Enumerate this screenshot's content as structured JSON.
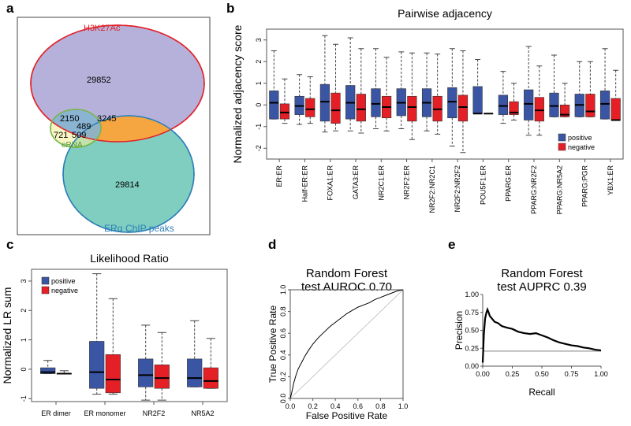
{
  "colors": {
    "positive": "#3a55a4",
    "negative": "#e41f26",
    "venn_h3k": "#a8a3d3",
    "venn_er": "#69c6b5",
    "venn_erna": "#f1ef9c",
    "venn_orange": "#f6a641"
  },
  "panels": {
    "a": "a",
    "b": "b",
    "c": "c",
    "d": "d",
    "e": "e"
  },
  "chart_data": [
    {
      "panel": "a",
      "type": "venn",
      "sets": [
        {
          "name": "H3K27Ac",
          "only": 29852
        },
        {
          "name": "ERα ChIP peaks",
          "only": 29814
        },
        {
          "name": "eRNA",
          "only": 721
        }
      ],
      "overlaps": [
        {
          "sets": [
            "H3K27Ac",
            "eRNA"
          ],
          "value": 2150
        },
        {
          "sets": [
            "H3K27Ac",
            "ERα ChIP peaks"
          ],
          "value": 3245
        },
        {
          "sets": [
            "H3K27Ac",
            "eRNA",
            "ERα ChIP peaks"
          ],
          "value": 489
        },
        {
          "sets": [
            "eRNA",
            "ERα ChIP peaks"
          ],
          "value": 509
        }
      ]
    },
    {
      "panel": "b",
      "type": "boxplot",
      "title": "Pairwise adjacency",
      "ylabel": "Normalized adjacency score",
      "ylim": [
        -2.5,
        3.5
      ],
      "yticks": [
        -2,
        -1,
        0,
        1,
        2,
        3
      ],
      "legend": [
        "positive",
        "negative"
      ],
      "categories": [
        "ER:ER",
        "Half-ER:ER",
        "FOXA1:ER",
        "GATA3:ER",
        "NR2C1:ER",
        "NR2F2:ER",
        "NR2F2:NR2C1",
        "NR2F2:NR2F2",
        "POU5F1:ER",
        "PPARG:ER",
        "PPARG:NR2F2",
        "PPARG:NR5A2",
        "PPARG:PGR",
        "YBX1:ER"
      ],
      "series": [
        {
          "name": "positive",
          "boxes": [
            [
              -0.65,
              -0.65,
              0.1,
              0.65,
              2.5
            ],
            [
              -0.9,
              -0.45,
              -0.05,
              0.4,
              1.4
            ],
            [
              -1.25,
              -0.75,
              0.15,
              0.95,
              3.2
            ],
            [
              -1.2,
              -0.65,
              0.1,
              0.9,
              3.1
            ],
            [
              -1.1,
              -0.55,
              0.05,
              0.75,
              2.6
            ],
            [
              -1.1,
              -0.5,
              0.1,
              0.75,
              2.45
            ],
            [
              -1.2,
              -0.55,
              0.1,
              0.75,
              2.4
            ],
            [
              -1.9,
              -0.6,
              0.15,
              0.8,
              2.6
            ],
            [
              -0.4,
              -0.4,
              -0.4,
              0.85,
              2.1
            ],
            [
              -0.85,
              -0.45,
              -0.05,
              0.45,
              1.55
            ],
            [
              -1.4,
              -0.7,
              0.05,
              0.7,
              2.7
            ],
            [
              -0.55,
              -0.55,
              -0.05,
              0.55,
              2.3
            ],
            [
              -0.55,
              -0.55,
              0.0,
              0.5,
              2.0
            ],
            [
              -0.65,
              -0.65,
              0.05,
              0.65,
              2.6
            ]
          ]
        },
        {
          "name": "negative",
          "boxes": [
            [
              -0.85,
              -0.65,
              -0.35,
              0.05,
              1.2
            ],
            [
              -0.85,
              -0.55,
              -0.2,
              0.3,
              1.3
            ],
            [
              -1.2,
              -0.85,
              -0.25,
              0.55,
              2.8
            ],
            [
              -1.3,
              -0.75,
              -0.2,
              0.5,
              2.6
            ],
            [
              -1.2,
              -0.6,
              -0.1,
              0.4,
              2.2
            ],
            [
              -1.6,
              -0.75,
              -0.1,
              0.4,
              2.4
            ],
            [
              -1.35,
              -0.75,
              -0.2,
              0.4,
              2.35
            ],
            [
              -2.2,
              -0.75,
              -0.1,
              0.45,
              2.5
            ],
            [
              -0.4,
              -0.4,
              -0.4,
              -0.4,
              -0.4
            ],
            [
              -0.7,
              -0.45,
              -0.35,
              0.15,
              1.0
            ],
            [
              -1.4,
              -0.75,
              -0.25,
              0.35,
              1.8
            ],
            [
              -0.55,
              -0.55,
              -0.45,
              0.0,
              1.0
            ],
            [
              -0.55,
              -0.55,
              -0.3,
              0.5,
              2.0
            ],
            [
              -0.7,
              -0.7,
              -0.7,
              0.3,
              1.6
            ]
          ]
        }
      ]
    },
    {
      "panel": "c",
      "type": "boxplot",
      "title": "Likelihood Ratio",
      "ylabel": "Normalized LR sum",
      "ylim": [
        -1.1,
        3.4
      ],
      "yticks": [
        -1,
        0,
        1,
        2,
        3
      ],
      "legend": [
        "positive",
        "negative"
      ],
      "categories": [
        "ER dimer",
        "ER monomer",
        "NR2F2",
        "NR5A2"
      ],
      "series": [
        {
          "name": "positive",
          "boxes": [
            [
              -0.15,
              -0.15,
              -0.1,
              0.05,
              0.3
            ],
            [
              -0.85,
              -0.65,
              -0.1,
              0.95,
              3.25
            ],
            [
              -1.05,
              -0.6,
              -0.2,
              0.35,
              1.5
            ],
            [
              -0.6,
              -0.6,
              -0.3,
              0.35,
              1.65
            ]
          ]
        },
        {
          "name": "negative",
          "boxes": [
            [
              -0.15,
              -0.15,
              -0.15,
              -0.15,
              -0.05
            ],
            [
              -0.85,
              -0.8,
              -0.35,
              0.5,
              2.4
            ],
            [
              -1.05,
              -0.65,
              -0.3,
              0.15,
              1.25
            ],
            [
              -0.65,
              -0.65,
              -0.4,
              0.05,
              1.05
            ]
          ]
        }
      ]
    },
    {
      "panel": "d",
      "type": "line",
      "title": "Random Forest\ntest AUROC 0.70",
      "title_lines": [
        "Random Forest",
        "test AUROC 0.70"
      ],
      "xlabel": "False Positive Rate",
      "ylabel": "True Positive Rate",
      "xlim": [
        0,
        1
      ],
      "ylim": [
        0,
        1
      ],
      "ticks": [
        "0.0",
        "0.2",
        "0.4",
        "0.6",
        "0.8",
        "1.0"
      ],
      "x": [
        0,
        0.01,
        0.02,
        0.03,
        0.05,
        0.07,
        0.1,
        0.13,
        0.16,
        0.2,
        0.25,
        0.3,
        0.35,
        0.4,
        0.45,
        0.5,
        0.55,
        0.6,
        0.65,
        0.7,
        0.75,
        0.8,
        0.85,
        0.9,
        0.95,
        1.0
      ],
      "y": [
        0,
        0.04,
        0.09,
        0.14,
        0.21,
        0.27,
        0.33,
        0.39,
        0.44,
        0.5,
        0.56,
        0.61,
        0.66,
        0.7,
        0.74,
        0.78,
        0.81,
        0.84,
        0.86,
        0.88,
        0.91,
        0.93,
        0.95,
        0.97,
        0.99,
        1.0
      ],
      "diagonal": true
    },
    {
      "panel": "e",
      "type": "line",
      "title": "Random Forest\ntest AUPRC 0.39",
      "title_lines": [
        "Random Forest",
        "test AUPRC 0.39"
      ],
      "xlabel": "Recall",
      "ylabel": "Precision",
      "xlim": [
        0,
        1
      ],
      "ylim": [
        0,
        1
      ],
      "xticks": [
        "0.00",
        "0.25",
        "0.50",
        "0.75",
        "1.00"
      ],
      "yticks": [
        "0.00",
        "0.25",
        "0.50",
        "0.75",
        "1.00"
      ],
      "baseline": 0.21,
      "x": [
        0.0,
        0.01,
        0.02,
        0.03,
        0.04,
        0.05,
        0.06,
        0.08,
        0.1,
        0.13,
        0.16,
        0.2,
        0.25,
        0.3,
        0.35,
        0.4,
        0.45,
        0.5,
        0.55,
        0.6,
        0.65,
        0.7,
        0.75,
        0.8,
        0.85,
        0.9,
        0.95,
        1.0
      ],
      "y": [
        0.05,
        0.45,
        0.66,
        0.74,
        0.79,
        0.75,
        0.7,
        0.66,
        0.62,
        0.6,
        0.56,
        0.54,
        0.52,
        0.48,
        0.46,
        0.45,
        0.46,
        0.43,
        0.4,
        0.36,
        0.33,
        0.31,
        0.29,
        0.28,
        0.26,
        0.25,
        0.23,
        0.22
      ]
    }
  ]
}
